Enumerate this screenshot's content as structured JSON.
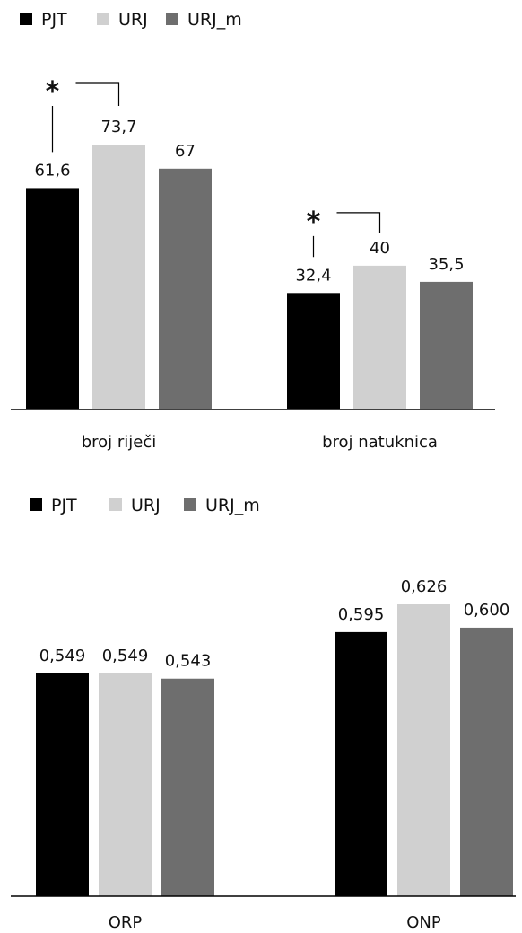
{
  "chart_data": [
    {
      "type": "bar",
      "categories": [
        "broj riječi",
        "broj natuknica"
      ],
      "series": [
        {
          "name": "PJT",
          "values": [
            61.6,
            32.4
          ],
          "labels": [
            "61,6",
            "32,4"
          ],
          "color": "#000000"
        },
        {
          "name": "URJ",
          "values": [
            73.7,
            40
          ],
          "labels": [
            "73,7",
            "40"
          ],
          "color": "#d0d0d0"
        },
        {
          "name": "URJ_m",
          "values": [
            67,
            35.5
          ],
          "labels": [
            "67",
            "35,5"
          ],
          "color": "#6e6e6e"
        }
      ],
      "legend_position": "top-left",
      "significance": [
        {
          "category_index": 0,
          "from_series": 0,
          "to_series": 1,
          "marker": "*"
        },
        {
          "category_index": 1,
          "from_series": 0,
          "to_series": 1,
          "marker": "*"
        }
      ]
    },
    {
      "type": "bar",
      "categories": [
        "ORP",
        "ONP"
      ],
      "series": [
        {
          "name": "PJT",
          "values": [
            0.549,
            0.595
          ],
          "labels": [
            "0,549",
            "0,595"
          ],
          "color": "#000000"
        },
        {
          "name": "URJ",
          "values": [
            0.549,
            0.626
          ],
          "labels": [
            "0,549",
            "0,626"
          ],
          "color": "#d0d0d0"
        },
        {
          "name": "URJ_m",
          "values": [
            0.543,
            0.6
          ],
          "labels": [
            "0,543",
            "0,600"
          ],
          "color": "#6e6e6e"
        }
      ],
      "legend_position": "top-left"
    }
  ]
}
